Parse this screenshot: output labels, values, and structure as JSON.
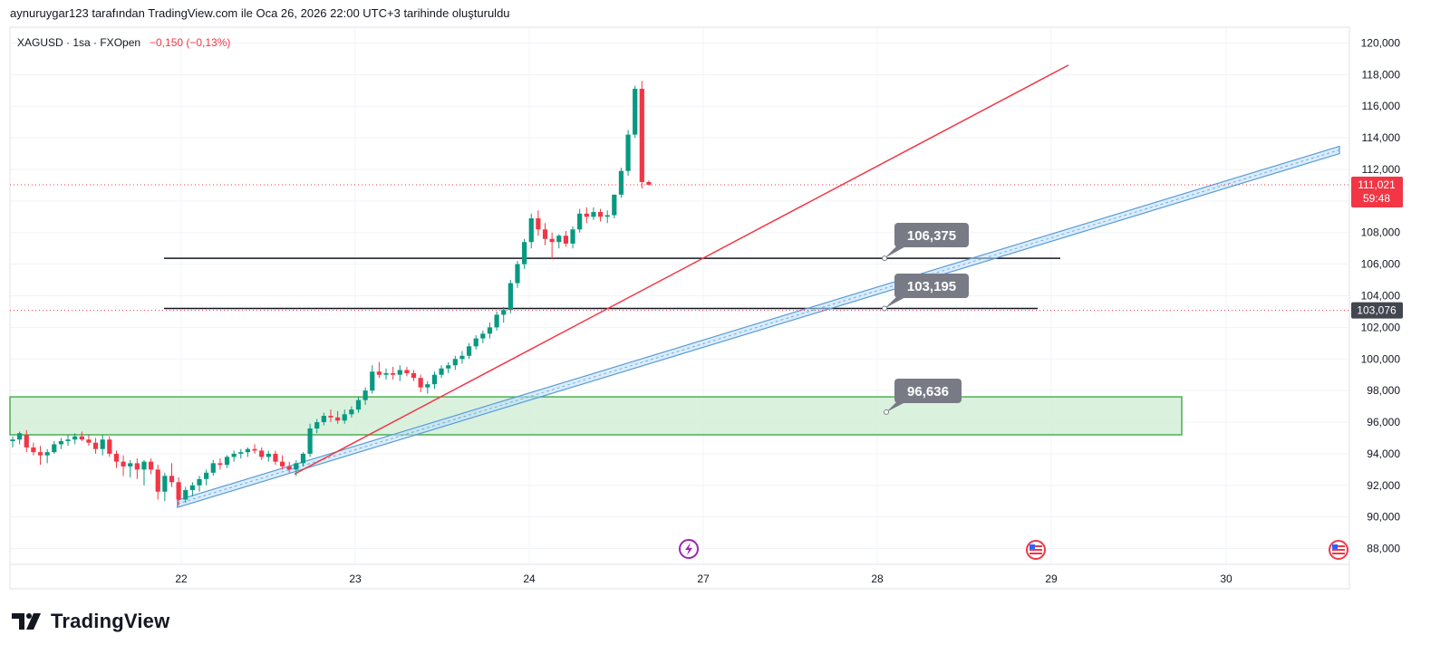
{
  "caption": "aynuruygar123 tarafından TradingView.com ile Oca 26, 2026 22:00 UTC+3 tarihinde oluşturuldu",
  "brand": "TradingView",
  "legend": {
    "symbol": "XAGUSD · 1sa · FXOpen",
    "change": "−0,150 (−0,13%)"
  },
  "colors": {
    "up": "#089981",
    "down": "#f23645",
    "grid": "#f0f3fa",
    "trendline": "#f23645",
    "channel": "#5b9bd5",
    "zone_fill": "#d4eed8",
    "zone_border": "#4caf50",
    "callout": "#787b86"
  },
  "chart_data": {
    "type": "candlestick",
    "symbol": "XAGUSD",
    "interval": "1h",
    "x_ticks": [
      "22",
      "23",
      "24",
      "27",
      "28",
      "29",
      "30"
    ],
    "y_ticks": [
      "120,000",
      "118,000",
      "116,000",
      "114,000",
      "112,000",
      "110,000",
      "108,000",
      "106,000",
      "104,000",
      "102,000",
      "100,000",
      "98,000",
      "96,000",
      "94,000",
      "92,000",
      "90,000",
      "88,000"
    ],
    "ylim": [
      87,
      121
    ],
    "grid": true,
    "candles": [
      [
        94.8,
        95.1,
        94.4,
        94.9
      ],
      [
        94.9,
        95.4,
        94.6,
        95.3
      ],
      [
        95.2,
        95.5,
        94.1,
        94.4
      ],
      [
        94.4,
        94.7,
        93.9,
        94.1
      ],
      [
        94.1,
        94.5,
        93.3,
        93.9
      ],
      [
        93.9,
        94.3,
        93.4,
        94.1
      ],
      [
        94.1,
        94.8,
        94.0,
        94.6
      ],
      [
        94.6,
        95.0,
        94.3,
        94.8
      ],
      [
        94.8,
        95.2,
        94.5,
        94.9
      ],
      [
        94.9,
        95.3,
        94.6,
        95.1
      ],
      [
        95.1,
        95.4,
        94.8,
        94.9
      ],
      [
        94.9,
        95.2,
        94.5,
        94.7
      ],
      [
        94.7,
        95.0,
        94.0,
        94.3
      ],
      [
        94.3,
        95.2,
        93.9,
        94.9
      ],
      [
        94.9,
        95.1,
        93.8,
        94.0
      ],
      [
        94.0,
        94.2,
        93.1,
        93.5
      ],
      [
        93.5,
        93.9,
        92.6,
        93.2
      ],
      [
        93.2,
        93.6,
        92.5,
        93.4
      ],
      [
        93.4,
        93.7,
        92.4,
        93.0
      ],
      [
        93.0,
        93.6,
        92.0,
        93.5
      ],
      [
        93.5,
        93.7,
        92.7,
        93.0
      ],
      [
        93.0,
        93.3,
        91.1,
        91.6
      ],
      [
        91.6,
        92.8,
        91.0,
        92.6
      ],
      [
        92.6,
        93.4,
        91.9,
        92.2
      ],
      [
        92.2,
        92.5,
        90.7,
        91.1
      ],
      [
        91.1,
        91.9,
        90.9,
        91.7
      ],
      [
        91.7,
        92.2,
        91.3,
        92.0
      ],
      [
        92.0,
        92.6,
        91.6,
        92.4
      ],
      [
        92.4,
        93.0,
        92.0,
        92.8
      ],
      [
        92.8,
        93.6,
        92.6,
        93.4
      ],
      [
        93.4,
        93.7,
        93.0,
        93.3
      ],
      [
        93.3,
        93.9,
        93.1,
        93.8
      ],
      [
        93.8,
        94.2,
        93.5,
        94.0
      ],
      [
        94.0,
        94.3,
        93.7,
        94.1
      ],
      [
        94.1,
        94.4,
        93.8,
        94.3
      ],
      [
        94.3,
        94.6,
        94.0,
        94.2
      ],
      [
        94.2,
        94.4,
        93.6,
        93.8
      ],
      [
        93.8,
        94.2,
        93.5,
        94.0
      ],
      [
        94.0,
        94.2,
        93.3,
        93.5
      ],
      [
        93.5,
        93.9,
        93.0,
        93.2
      ],
      [
        93.2,
        93.5,
        92.8,
        93.0
      ],
      [
        93.0,
        93.6,
        92.6,
        93.4
      ],
      [
        93.4,
        94.1,
        93.2,
        94.0
      ],
      [
        94.0,
        95.9,
        93.8,
        95.6
      ],
      [
        95.6,
        96.2,
        95.3,
        96.0
      ],
      [
        96.0,
        96.6,
        95.8,
        96.4
      ],
      [
        96.4,
        96.8,
        96.0,
        96.3
      ],
      [
        96.3,
        96.7,
        95.9,
        96.1
      ],
      [
        96.1,
        96.8,
        95.9,
        96.5
      ],
      [
        96.5,
        97.0,
        96.3,
        96.8
      ],
      [
        96.8,
        97.6,
        96.6,
        97.4
      ],
      [
        97.4,
        98.2,
        97.1,
        98.0
      ],
      [
        98.0,
        99.6,
        97.8,
        99.2
      ],
      [
        99.2,
        99.8,
        98.8,
        99.0
      ],
      [
        99.0,
        99.4,
        98.7,
        99.1
      ],
      [
        99.1,
        99.5,
        98.7,
        99.0
      ],
      [
        99.0,
        99.6,
        98.6,
        99.3
      ],
      [
        99.3,
        99.5,
        98.9,
        99.1
      ],
      [
        99.1,
        99.3,
        98.6,
        98.8
      ],
      [
        98.8,
        99.0,
        97.9,
        98.2
      ],
      [
        98.2,
        98.6,
        97.8,
        98.4
      ],
      [
        98.4,
        99.2,
        98.1,
        99.0
      ],
      [
        99.0,
        99.6,
        98.8,
        99.4
      ],
      [
        99.4,
        99.8,
        99.1,
        99.6
      ],
      [
        99.6,
        100.2,
        99.3,
        100.0
      ],
      [
        100.0,
        100.5,
        99.7,
        100.2
      ],
      [
        100.2,
        101.0,
        100.0,
        100.8
      ],
      [
        100.8,
        101.5,
        100.6,
        101.3
      ],
      [
        101.3,
        101.8,
        101.0,
        101.6
      ],
      [
        101.6,
        102.3,
        101.3,
        102.0
      ],
      [
        102.0,
        103.0,
        101.8,
        102.8
      ],
      [
        102.8,
        103.3,
        102.3,
        103.1
      ],
      [
        103.1,
        105.0,
        102.9,
        104.8
      ],
      [
        104.8,
        106.2,
        104.5,
        106.0
      ],
      [
        106.0,
        107.6,
        105.7,
        107.4
      ],
      [
        107.4,
        109.2,
        107.0,
        108.9
      ],
      [
        108.9,
        109.4,
        107.8,
        108.2
      ],
      [
        108.2,
        108.6,
        107.2,
        107.6
      ],
      [
        107.6,
        108.0,
        106.3,
        107.4
      ],
      [
        107.4,
        107.9,
        107.0,
        107.8
      ],
      [
        107.8,
        108.1,
        107.1,
        107.3
      ],
      [
        107.3,
        108.4,
        107.0,
        108.2
      ],
      [
        108.2,
        109.5,
        108.0,
        109.2
      ],
      [
        109.2,
        109.6,
        108.6,
        109.0
      ],
      [
        109.0,
        109.6,
        108.8,
        109.3
      ],
      [
        109.3,
        109.5,
        108.7,
        109.0
      ],
      [
        109.0,
        109.4,
        108.6,
        109.1
      ],
      [
        109.1,
        110.4,
        108.9,
        110.4
      ],
      [
        110.4,
        112.1,
        110.2,
        111.9
      ],
      [
        111.9,
        114.5,
        111.6,
        114.2
      ],
      [
        114.2,
        117.3,
        114.0,
        117.1
      ],
      [
        117.1,
        117.6,
        110.8,
        111.2
      ],
      [
        111.2,
        111.3,
        111.0,
        111.02
      ]
    ],
    "last_price": "111,021",
    "countdown": "59:48",
    "level_marker": "103,076",
    "horizontal_levels": [
      106.375,
      103.195
    ],
    "labels": [
      "106,375",
      "103,195",
      "96,636"
    ],
    "zone": {
      "top": 97.6,
      "bottom": 95.2
    },
    "trendline": {
      "from": [
        4.0,
        93.0
      ],
      "to": [
        52.0,
        118.6
      ]
    },
    "channel": {
      "from": [
        9.0,
        90.6
      ],
      "to": [
        74.0,
        113.0
      ]
    }
  }
}
